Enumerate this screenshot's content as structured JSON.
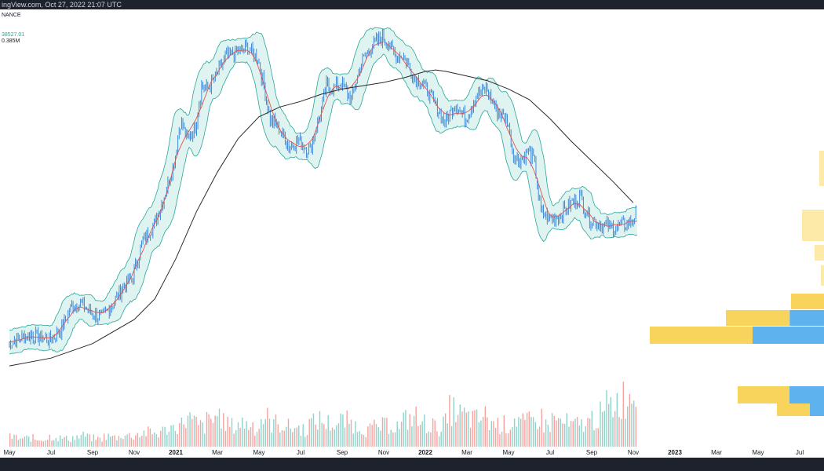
{
  "header": {
    "text": "ingView.com, Oct 27, 2022 21:07 UTC"
  },
  "legend": {
    "exchange": "NANCE",
    "price": "38527.01",
    "volume": "0.385M"
  },
  "colors": {
    "candle": "#2f7fd6",
    "band_fill": "#d9f2ee",
    "band_line": "#26a69a",
    "basis": "#e0544f",
    "ma_long": "#2a2a2a",
    "vol_up": "#8fd3cb",
    "vol_down": "#f5a39e",
    "vp_yellow": "#f9d45c",
    "vp_blue": "#5eb2ee",
    "vp_yellow_light": "#fde9a8"
  },
  "chart_data": {
    "type": "line",
    "title": "",
    "xlabel": "",
    "ylabel": "",
    "x_ticks": [
      {
        "label": "May",
        "t": 0.0,
        "bold": false
      },
      {
        "label": "Jul",
        "t": 2.0,
        "bold": false
      },
      {
        "label": "Sep",
        "t": 4.0,
        "bold": false
      },
      {
        "label": "Nov",
        "t": 6.0,
        "bold": false
      },
      {
        "label": "2021",
        "t": 8.0,
        "bold": true
      },
      {
        "label": "Mar",
        "t": 10.0,
        "bold": false
      },
      {
        "label": "May",
        "t": 12.0,
        "bold": false
      },
      {
        "label": "Jul",
        "t": 14.0,
        "bold": false
      },
      {
        "label": "Sep",
        "t": 16.0,
        "bold": false
      },
      {
        "label": "Nov",
        "t": 18.0,
        "bold": false
      },
      {
        "label": "2022",
        "t": 20.0,
        "bold": true
      },
      {
        "label": "Mar",
        "t": 22.0,
        "bold": false
      },
      {
        "label": "May",
        "t": 24.0,
        "bold": false
      },
      {
        "label": "Jul",
        "t": 26.0,
        "bold": false
      },
      {
        "label": "Sep",
        "t": 28.0,
        "bold": false
      },
      {
        "label": "Nov",
        "t": 30.0,
        "bold": false
      },
      {
        "label": "2023",
        "t": 32.0,
        "bold": true
      },
      {
        "label": "Mar",
        "t": 34.0,
        "bold": false
      },
      {
        "label": "May",
        "t": 36.0,
        "bold": false
      },
      {
        "label": "Jul",
        "t": 38.0,
        "bold": false
      }
    ],
    "series": [
      {
        "name": "",
        "style": "price",
        "points": [
          [
            0.0,
            9000
          ],
          [
            0.5,
            9300
          ],
          [
            1.0,
            9500
          ],
          [
            1.5,
            9400
          ],
          [
            2.0,
            9200
          ],
          [
            2.5,
            9800
          ],
          [
            3.0,
            11300
          ],
          [
            3.5,
            11700
          ],
          [
            4.0,
            10900
          ],
          [
            4.5,
            10700
          ],
          [
            5.0,
            11500
          ],
          [
            5.5,
            12900
          ],
          [
            6.0,
            13800
          ],
          [
            6.5,
            17500
          ],
          [
            7.0,
            19300
          ],
          [
            7.5,
            23000
          ],
          [
            8.0,
            29000
          ],
          [
            8.3,
            38000
          ],
          [
            8.6,
            33000
          ],
          [
            9.0,
            36000
          ],
          [
            9.3,
            47000
          ],
          [
            9.6,
            46000
          ],
          [
            10.0,
            50000
          ],
          [
            10.5,
            57000
          ],
          [
            11.0,
            58000
          ],
          [
            11.5,
            60000
          ],
          [
            12.0,
            56000
          ],
          [
            12.3,
            47000
          ],
          [
            12.6,
            38000
          ],
          [
            13.0,
            36000
          ],
          [
            13.5,
            32000
          ],
          [
            14.0,
            33000
          ],
          [
            14.5,
            31000
          ],
          [
            15.0,
            39000
          ],
          [
            15.3,
            47000
          ],
          [
            15.6,
            46000
          ],
          [
            16.0,
            48000
          ],
          [
            16.5,
            43000
          ],
          [
            17.0,
            55000
          ],
          [
            17.5,
            61000
          ],
          [
            18.0,
            64000
          ],
          [
            18.3,
            62000
          ],
          [
            18.6,
            57000
          ],
          [
            19.0,
            57000
          ],
          [
            19.5,
            50000
          ],
          [
            20.0,
            47000
          ],
          [
            20.5,
            42000
          ],
          [
            21.0,
            37000
          ],
          [
            21.5,
            42000
          ],
          [
            22.0,
            38000
          ],
          [
            22.5,
            44000
          ],
          [
            23.0,
            46000
          ],
          [
            23.5,
            40000
          ],
          [
            24.0,
            38000
          ],
          [
            24.3,
            30000
          ],
          [
            24.6,
            29000
          ],
          [
            25.0,
            31000
          ],
          [
            25.3,
            29000
          ],
          [
            25.6,
            21000
          ],
          [
            26.0,
            20000
          ],
          [
            26.5,
            20500
          ],
          [
            27.0,
            22000
          ],
          [
            27.5,
            23000
          ],
          [
            28.0,
            20000
          ],
          [
            28.5,
            19300
          ],
          [
            29.0,
            19000
          ],
          [
            29.5,
            19200
          ],
          [
            30.0,
            19800
          ],
          [
            30.2,
            20700
          ]
        ]
      },
      {
        "name": "",
        "style": "ma_long",
        "points": [
          [
            0.0,
            7800
          ],
          [
            2.0,
            8200
          ],
          [
            4.0,
            9000
          ],
          [
            6.0,
            10500
          ],
          [
            7.0,
            12000
          ],
          [
            8.0,
            15500
          ],
          [
            9.0,
            21000
          ],
          [
            10.0,
            27000
          ],
          [
            11.0,
            33500
          ],
          [
            12.0,
            38500
          ],
          [
            13.0,
            41000
          ],
          [
            14.0,
            42500
          ],
          [
            15.0,
            44500
          ],
          [
            16.0,
            46000
          ],
          [
            17.0,
            47000
          ],
          [
            18.0,
            48000
          ],
          [
            19.0,
            49500
          ],
          [
            20.0,
            51500
          ],
          [
            20.5,
            52000
          ],
          [
            21.0,
            51500
          ],
          [
            22.0,
            50000
          ],
          [
            23.0,
            48500
          ],
          [
            24.0,
            46000
          ],
          [
            25.0,
            43000
          ],
          [
            26.0,
            38000
          ],
          [
            27.0,
            33000
          ],
          [
            28.0,
            29000
          ],
          [
            29.0,
            25500
          ],
          [
            30.0,
            22200
          ]
        ]
      }
    ],
    "y_scale": "log",
    "y_range": [
      5600,
      70000
    ],
    "volume_relative": [
      0.12,
      0.1,
      0.11,
      0.09,
      0.1,
      0.13,
      0.11,
      0.1,
      0.12,
      0.14,
      0.11,
      0.1,
      0.13,
      0.12,
      0.15,
      0.14,
      0.16,
      0.18,
      0.17,
      0.2,
      0.24,
      0.28,
      0.35,
      0.3,
      0.26,
      0.32,
      0.4,
      0.3,
      0.26,
      0.3,
      0.28,
      0.24,
      0.36,
      0.3,
      0.28,
      0.25,
      0.24,
      0.22,
      0.3,
      0.34,
      0.3,
      0.28,
      0.32,
      0.3,
      0.26,
      0.22,
      0.24,
      0.26,
      0.28,
      0.26,
      0.34,
      0.38,
      0.3,
      0.28,
      0.24,
      0.3,
      0.46,
      0.4,
      0.36,
      0.34,
      0.38,
      0.3,
      0.28,
      0.26,
      0.35,
      0.3,
      0.32,
      0.36,
      0.28,
      0.34,
      0.3,
      0.26,
      0.28,
      0.3,
      0.36,
      0.4,
      0.52,
      0.58,
      0.62,
      0.7
    ]
  }
}
